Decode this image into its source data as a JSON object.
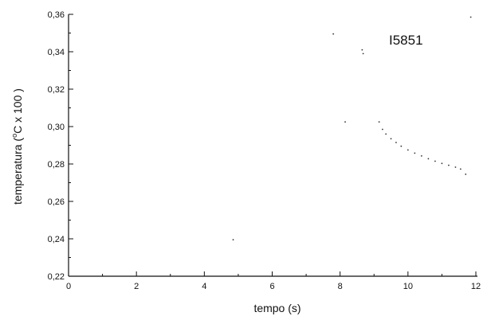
{
  "chart_data": {
    "type": "scatter",
    "xlabel": "tempo (s)",
    "ylabel_parts": {
      "before": "temperatura (",
      "superscript": "o",
      "after": "C x 100 )"
    },
    "annotation": "I5851",
    "xlim": [
      0,
      12
    ],
    "ylim": [
      0.22,
      0.36
    ],
    "x_ticks": [
      "0",
      "2",
      "4",
      "6",
      "8",
      "10",
      "12"
    ],
    "y_ticks": [
      "0,22",
      "0,24",
      "0,26",
      "0,28",
      "0,30",
      "0,32",
      "0,34",
      "0,36"
    ],
    "x_tick_values": [
      0,
      2,
      4,
      6,
      8,
      10,
      12
    ],
    "y_tick_values": [
      0.22,
      0.24,
      0.26,
      0.28,
      0.3,
      0.32,
      0.34,
      0.36
    ],
    "grid": false,
    "series": [
      {
        "x": [
          4.85,
          7.8,
          8.15,
          8.65,
          8.68,
          9.15,
          9.25,
          9.35,
          9.5,
          9.65,
          9.8,
          10.0,
          10.2,
          10.4,
          10.6,
          10.8,
          11.0,
          11.2,
          11.4,
          11.55,
          11.7,
          11.85
        ],
        "y": [
          0.2395,
          0.3495,
          0.3025,
          0.341,
          0.339,
          0.3025,
          0.2985,
          0.296,
          0.2935,
          0.2915,
          0.2895,
          0.2875,
          0.2858,
          0.2843,
          0.2828,
          0.2815,
          0.2803,
          0.2793,
          0.2783,
          0.2773,
          0.2745,
          0.3585
        ]
      }
    ]
  }
}
